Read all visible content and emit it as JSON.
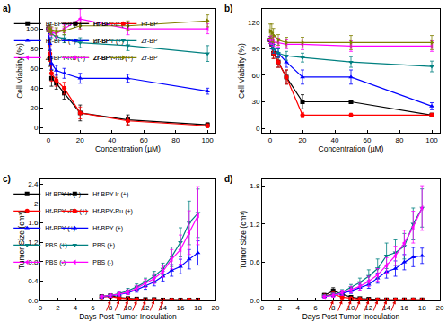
{
  "chart_data": [
    {
      "type": "line",
      "title": "a)",
      "x_label": "Concentration (µM)",
      "y_label": "Cell Viability (%)",
      "x": [
        0,
        1,
        2,
        5,
        10,
        20,
        50,
        100
      ],
      "xlim": [
        -5,
        105
      ],
      "xticks": [
        0,
        20,
        40,
        60,
        80,
        100
      ],
      "ylim": [
        -5,
        120
      ],
      "yticks": [
        0,
        20,
        40,
        60,
        80,
        100
      ],
      "grid": false,
      "legend": "top",
      "series": [
        {
          "name": "Hf-BPY-Ir (+)",
          "color": "#000000",
          "marker": "square",
          "values": [
            100,
            70,
            50,
            45,
            35,
            15,
            8,
            3
          ],
          "errors": [
            3,
            8,
            8,
            6,
            6,
            8,
            5,
            2
          ]
        },
        {
          "name": "Hf-BPY-Ru (+)",
          "color": "#ff0000",
          "marker": "circle",
          "values": [
            100,
            75,
            55,
            48,
            40,
            15,
            7,
            2
          ],
          "errors": [
            3,
            8,
            8,
            6,
            6,
            6,
            4,
            2
          ]
        },
        {
          "name": "Hf-BPY (+)",
          "color": "#0000ff",
          "marker": "triangle-up",
          "values": [
            100,
            85,
            65,
            58,
            55,
            50,
            50,
            37
          ],
          "errors": [
            3,
            6,
            6,
            5,
            5,
            5,
            4,
            3
          ]
        },
        {
          "name": "Zr-BPY-Ir (+)",
          "color": "#008080",
          "marker": "triangle-down",
          "values": [
            100,
            98,
            95,
            92,
            90,
            86,
            83,
            75
          ],
          "errors": [
            3,
            4,
            4,
            4,
            4,
            5,
            5,
            8
          ]
        },
        {
          "name": "Zr-BPY-Ru (+)",
          "color": "#ff00ff",
          "marker": "triangle-left",
          "values": [
            100,
            98,
            97,
            95,
            100,
            110,
            100,
            100
          ],
          "errors": [
            3,
            4,
            4,
            4,
            4,
            10,
            6,
            5
          ]
        },
        {
          "name": "Zr-BPY (+)",
          "color": "#808000",
          "marker": "triangle-right",
          "values": [
            100,
            100,
            98,
            97,
            98,
            103,
            103,
            108
          ],
          "errors": [
            3,
            4,
            4,
            4,
            4,
            4,
            5,
            6
          ]
        }
      ]
    },
    {
      "type": "line",
      "title": "b)",
      "x_label": "Concentration (µM)",
      "y_label": "Cell Viability (%)",
      "x": [
        0,
        1,
        2,
        5,
        10,
        20,
        50,
        100
      ],
      "xlim": [
        -5,
        105
      ],
      "xticks": [
        0,
        20,
        40,
        60,
        80,
        100
      ],
      "ylim": [
        -5,
        135
      ],
      "yticks": [
        0,
        30,
        60,
        90,
        120
      ],
      "grid": false,
      "legend": "top",
      "series": [
        {
          "name": "Hf-BPY-Ir (+)",
          "color": "#000000",
          "marker": "square",
          "values": [
            100,
            95,
            85,
            75,
            58,
            30,
            30,
            15
          ],
          "errors": [
            4,
            5,
            6,
            6,
            8,
            8,
            2,
            2
          ]
        },
        {
          "name": "Hf-BPY-Ru (+)",
          "color": "#ff0000",
          "marker": "circle",
          "values": [
            100,
            95,
            85,
            75,
            58,
            15,
            15,
            15
          ],
          "errors": [
            4,
            5,
            6,
            6,
            8,
            3,
            2,
            2
          ]
        },
        {
          "name": "Hf-BPY (+)",
          "color": "#0000ff",
          "marker": "triangle-up",
          "values": [
            100,
            95,
            90,
            85,
            75,
            58,
            58,
            25
          ],
          "errors": [
            4,
            5,
            5,
            5,
            6,
            8,
            8,
            4
          ]
        },
        {
          "name": "Zr-BPY-Ir (+)",
          "color": "#008080",
          "marker": "triangle-down",
          "values": [
            100,
            95,
            90,
            85,
            82,
            80,
            75,
            70
          ],
          "errors": [
            4,
            5,
            5,
            5,
            5,
            5,
            6,
            6
          ]
        },
        {
          "name": "Zr-BPY-Ru (+)",
          "color": "#ff00ff",
          "marker": "triangle-left",
          "values": [
            100,
            100,
            98,
            97,
            95,
            95,
            93,
            93
          ],
          "errors": [
            4,
            5,
            5,
            5,
            5,
            6,
            6,
            6
          ]
        },
        {
          "name": "Zr-BPY (+)",
          "color": "#808000",
          "marker": "triangle-right",
          "values": [
            110,
            108,
            105,
            100,
            97,
            97,
            97,
            97
          ],
          "errors": [
            8,
            10,
            8,
            6,
            6,
            6,
            8,
            8
          ]
        }
      ]
    },
    {
      "type": "line",
      "title": "c)",
      "x_label": "Days Post Tumor Inoculation",
      "y_label": "Tumor Size (cm³)",
      "x": [
        7,
        8,
        9,
        10,
        11,
        12,
        13,
        14,
        15,
        16,
        17,
        18
      ],
      "xlim": [
        0,
        20
      ],
      "xticks": [
        0,
        2,
        4,
        6,
        8,
        10,
        12,
        14,
        16,
        18,
        20
      ],
      "ylim": [
        0,
        2.5
      ],
      "yticks": [
        {
          "value": 0,
          "label": "0.0"
        },
        0.4,
        0.8,
        1.2,
        1.6,
        2,
        {
          "value": 2.4,
          "label": "2.4"
        }
      ],
      "grid": false,
      "legend": "upper left",
      "treatment_days": [
        8,
        9,
        10,
        11,
        12,
        13,
        14
      ],
      "series": [
        {
          "name": "Hf-BPY-Ir (+)",
          "color": "#000000",
          "marker": "square",
          "values": [
            0.08,
            0.1,
            0.06,
            0.04,
            0.03,
            0.02,
            0.02,
            0.01,
            0.01,
            0.01,
            0.01,
            0.01
          ],
          "errors": [
            0.02,
            0.03,
            0.02,
            0.02,
            0.01,
            0.01,
            0.01,
            0.01,
            0.01,
            0.01,
            0.01,
            0.01
          ]
        },
        {
          "name": "Hf-BPY -Ru (+)",
          "color": "#ff0000",
          "marker": "circle",
          "values": [
            0.07,
            0.08,
            0.05,
            0.03,
            0.02,
            0.01,
            0.01,
            0.01,
            0.01,
            0.01,
            0.01,
            0.01
          ],
          "errors": [
            0.02,
            0.02,
            0.02,
            0.01,
            0.01,
            0.01,
            0.01,
            0.01,
            0.01,
            0.01,
            0.01,
            0.01
          ]
        },
        {
          "name": "Hf-BPY (+)",
          "color": "#0000ff",
          "marker": "triangle-up",
          "values": [
            0.07,
            0.09,
            0.12,
            0.16,
            0.22,
            0.3,
            0.38,
            0.5,
            0.62,
            0.7,
            0.85,
            0.98
          ],
          "errors": [
            0.02,
            0.02,
            0.03,
            0.04,
            0.05,
            0.07,
            0.08,
            0.1,
            0.12,
            0.15,
            0.2,
            0.25
          ]
        },
        {
          "name": "PBS (+)",
          "color": "#008080",
          "marker": "triangle-down",
          "values": [
            0.08,
            0.1,
            0.14,
            0.2,
            0.28,
            0.38,
            0.5,
            0.65,
            0.9,
            1.2,
            1.6,
            1.8
          ],
          "errors": [
            0.02,
            0.03,
            0.04,
            0.05,
            0.06,
            0.08,
            0.1,
            0.12,
            0.2,
            0.3,
            0.45,
            0.5
          ]
        },
        {
          "name": "PBS (-)",
          "color": "#ff00ff",
          "marker": "triangle-left",
          "values": [
            0.08,
            0.1,
            0.13,
            0.17,
            0.25,
            0.35,
            0.45,
            0.6,
            0.85,
            1.05,
            1.4,
            1.75
          ],
          "errors": [
            0.02,
            0.03,
            0.04,
            0.05,
            0.06,
            0.08,
            0.1,
            0.12,
            0.2,
            0.3,
            0.45,
            0.6
          ]
        }
      ]
    },
    {
      "type": "line",
      "title": "d)",
      "x_label": "Days Post Tumor Inoculation",
      "y_label": "Tumor Size (cm³)",
      "x": [
        7,
        8,
        9,
        10,
        11,
        12,
        13,
        14,
        15,
        16,
        17,
        18
      ],
      "xlim": [
        0,
        20
      ],
      "xticks": [
        0,
        2,
        4,
        6,
        8,
        10,
        12,
        14,
        16,
        18,
        20
      ],
      "ylim": [
        0,
        1.9
      ],
      "yticks": [
        {
          "value": 0,
          "label": "0.0"
        },
        0.6,
        1.2,
        1.8
      ],
      "grid": false,
      "legend": "upper left",
      "treatment_days": [
        8,
        9,
        10,
        11,
        12,
        13,
        14,
        15
      ],
      "series": [
        {
          "name": "Hf-BPY-Ir (+)",
          "color": "#000000",
          "marker": "square",
          "values": [
            0.08,
            0.15,
            0.1,
            0.05,
            0.03,
            0.02,
            0.01,
            0.01,
            0.01,
            0.01,
            0.01,
            0.01
          ],
          "errors": [
            0.03,
            0.05,
            0.04,
            0.02,
            0.01,
            0.01,
            0.01,
            0.01,
            0.01,
            0.01,
            0.01,
            0.01
          ]
        },
        {
          "name": "Hf-BPY-Ru (+)",
          "color": "#ff0000",
          "marker": "circle",
          "values": [
            0.07,
            0.1,
            0.05,
            0.03,
            0.02,
            0.01,
            0.01,
            0.01,
            0.01,
            0.01,
            0.01,
            0.01
          ],
          "errors": [
            0.02,
            0.03,
            0.02,
            0.01,
            0.01,
            0.01,
            0.01,
            0.01,
            0.01,
            0.01,
            0.01,
            0.01
          ]
        },
        {
          "name": "Hf-BPY (+)",
          "color": "#0000ff",
          "marker": "triangle-up",
          "values": [
            0.06,
            0.08,
            0.11,
            0.15,
            0.2,
            0.25,
            0.35,
            0.45,
            0.5,
            0.6,
            0.68,
            0.7
          ],
          "errors": [
            0.02,
            0.02,
            0.03,
            0.04,
            0.05,
            0.06,
            0.08,
            0.1,
            0.12,
            0.12,
            0.15,
            0.12
          ]
        },
        {
          "name": "PBS (+)",
          "color": "#008080",
          "marker": "triangle-down",
          "values": [
            0.07,
            0.09,
            0.13,
            0.2,
            0.28,
            0.38,
            0.5,
            0.7,
            0.75,
            0.85,
            1.2,
            1.45
          ],
          "errors": [
            0.02,
            0.03,
            0.04,
            0.05,
            0.07,
            0.1,
            0.15,
            0.2,
            0.2,
            0.2,
            0.25,
            0.3
          ]
        },
        {
          "name": "PBS (-)",
          "color": "#ff00ff",
          "marker": "triangle-left",
          "values": [
            0.06,
            0.08,
            0.12,
            0.17,
            0.22,
            0.3,
            0.4,
            0.55,
            0.7,
            0.9,
            1.15,
            1.45
          ],
          "errors": [
            0.02,
            0.03,
            0.04,
            0.05,
            0.06,
            0.08,
            0.1,
            0.12,
            0.15,
            0.2,
            0.25,
            0.35
          ]
        }
      ]
    }
  ]
}
